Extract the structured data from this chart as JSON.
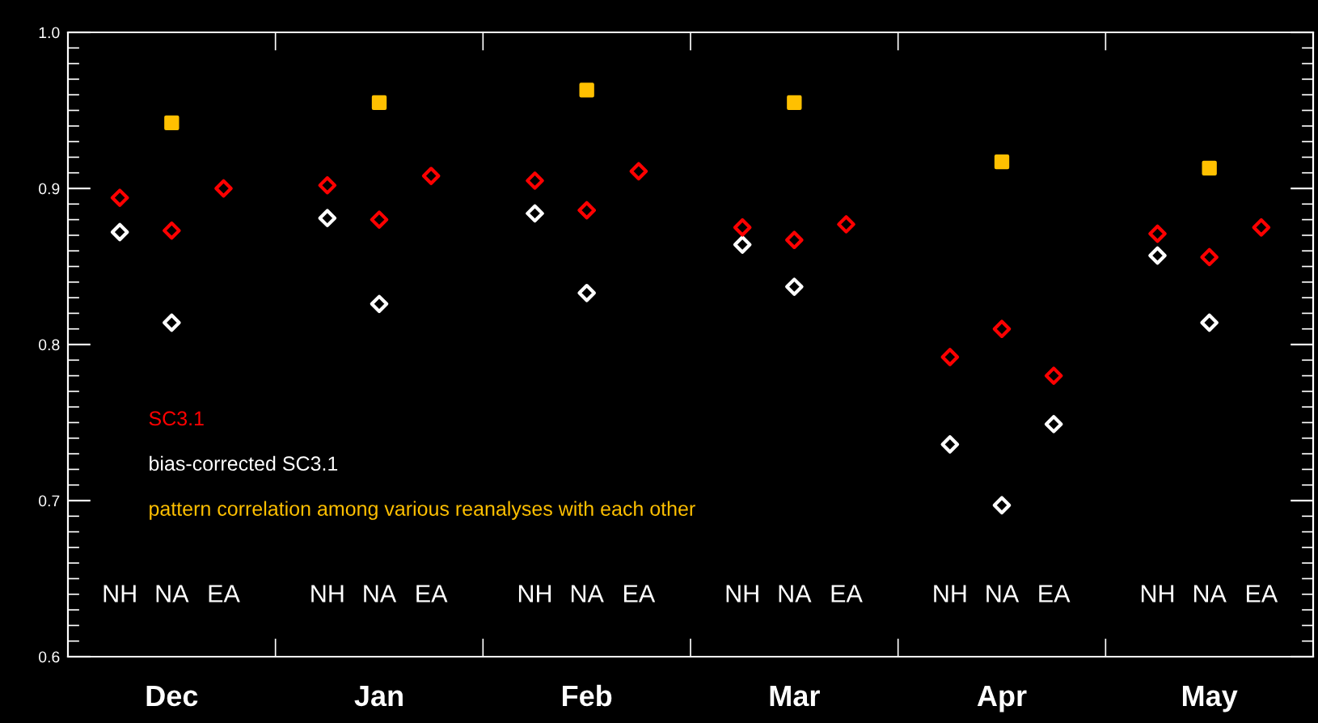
{
  "chart_data": {
    "type": "scatter",
    "categories": [
      "NH",
      "NA",
      "EA",
      "NH",
      "NA",
      "EA",
      "NH",
      "NA",
      "EA",
      "NH",
      "NA",
      "EA",
      "NH",
      "NA",
      "EA",
      "NH",
      "NA",
      "EA"
    ],
    "annotations": [
      "Dec",
      "Jan",
      "Feb",
      "Mar",
      "Apr",
      "May"
    ],
    "series": [
      {
        "name": "SC3.1",
        "color": "#ff0000",
        "marker": "diamond",
        "values": [
          0.894,
          0.873,
          0.9,
          0.902,
          0.88,
          0.908,
          0.905,
          0.886,
          0.911,
          0.875,
          0.867,
          0.877,
          0.792,
          0.81,
          0.78,
          0.871,
          0.856,
          0.875
        ]
      },
      {
        "name": "bias-corrected SC3.1",
        "color": "#ffffff",
        "marker": "diamond",
        "values": [
          0.872,
          0.814,
          null,
          0.881,
          0.826,
          null,
          0.884,
          0.833,
          null,
          0.864,
          0.837,
          null,
          0.736,
          0.697,
          0.749,
          0.857,
          0.814,
          null
        ]
      },
      {
        "name": "pattern correlation among various reanalyses with each other",
        "color": "#ffc000",
        "marker": "square",
        "values": [
          null,
          0.942,
          null,
          null,
          0.955,
          null,
          null,
          0.963,
          null,
          null,
          0.955,
          null,
          null,
          0.917,
          null,
          null,
          0.913,
          null
        ]
      }
    ],
    "ylim": [
      0.6,
      1.0
    ],
    "yticks": [
      0.6,
      0.7,
      0.8,
      0.9,
      {
        "value": 1,
        "label": "1.0"
      }
    ],
    "grid": false,
    "legend": "bottom left"
  }
}
